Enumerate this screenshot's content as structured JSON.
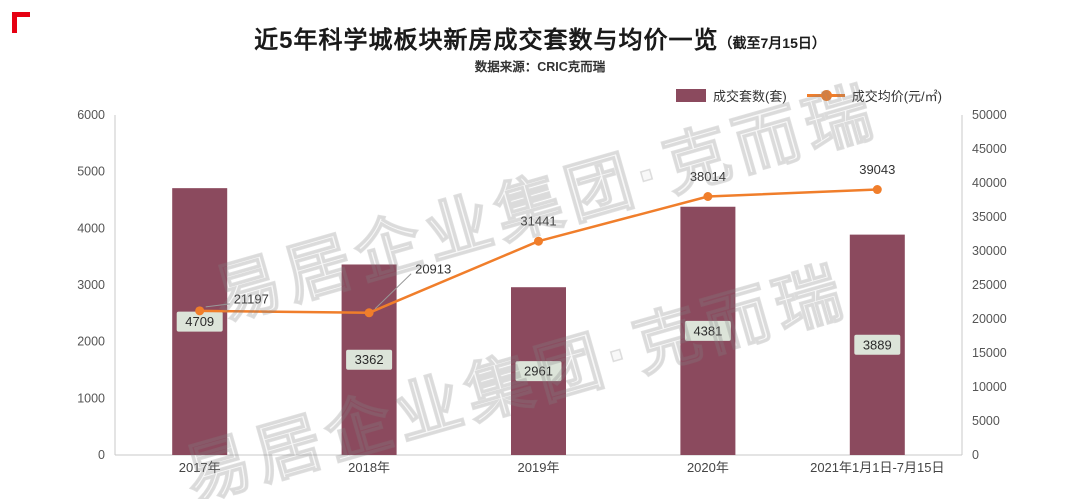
{
  "page": {
    "title": "近5年科学城板块新房成交套数与均价一览",
    "title_suffix": "（截至7月15日）",
    "subtitle": "数据来源：CRIC克而瑞",
    "watermark": "易居企业集团·克而瑞"
  },
  "legend": {
    "bars_label": "成交套数(套)",
    "line_label": "成交均价(元/㎡)"
  },
  "colors": {
    "bar": "#8B4A5E",
    "line": "#F07E2B",
    "label_box_bg": "#DCE4D9",
    "label_text": "#2b2b2b",
    "axis_line": "#c9c9c9",
    "axis_text": "#555555",
    "title": "#1A1A1A",
    "accent_red": "#E60012"
  },
  "chart_data": {
    "type": "bar",
    "subtype": "bar+line combo, dual axis",
    "categories": [
      "2017年",
      "2018年",
      "2019年",
      "2020年",
      "2021年1月1日-7月15日"
    ],
    "series": [
      {
        "name": "成交套数(套)",
        "type": "bar",
        "axis": "left",
        "values": [
          4709,
          3362,
          2961,
          4381,
          3889
        ]
      },
      {
        "name": "成交均价(元/㎡)",
        "type": "line",
        "axis": "right",
        "values": [
          21197,
          20913,
          31441,
          38014,
          39043
        ]
      }
    ],
    "left_axis": {
      "min": 0,
      "max": 6000,
      "step": 1000,
      "ticks": [
        0,
        1000,
        2000,
        3000,
        4000,
        5000,
        6000
      ]
    },
    "right_axis": {
      "min": 0,
      "max": 50000,
      "step": 5000,
      "ticks": [
        0,
        5000,
        10000,
        15000,
        20000,
        25000,
        30000,
        35000,
        40000,
        45000,
        50000
      ]
    },
    "grid": false,
    "legend_position": "top-right",
    "title": "近5年科学城板块新房成交套数与均价一览（截至7月15日）",
    "subtitle": "数据来源：CRIC克而瑞"
  }
}
